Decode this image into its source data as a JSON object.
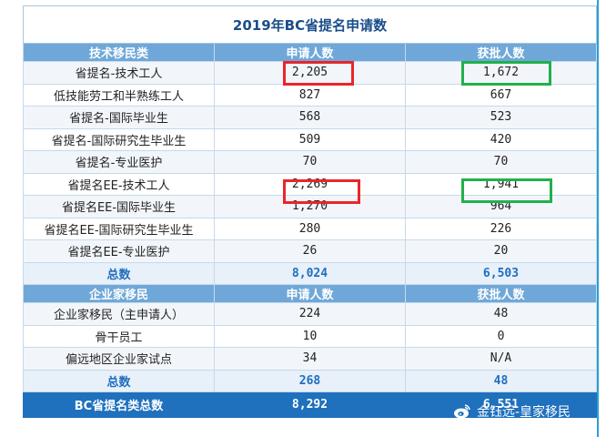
{
  "title": "2019年BC省提名申请数",
  "sections": [
    {
      "header": {
        "category": "技术移民类",
        "col1": "申请人数",
        "col2": "获批人数"
      },
      "rows": [
        {
          "label": "省提名-技术工人",
          "applied": "2,205",
          "approved": "1,672"
        },
        {
          "label": "低技能劳工和半熟练工人",
          "applied": "827",
          "approved": "667"
        },
        {
          "label": "省提名-国际毕业生",
          "applied": "568",
          "approved": "523"
        },
        {
          "label": "省提名-国际研究生毕业生",
          "applied": "509",
          "approved": "420"
        },
        {
          "label": "省提名-专业医护",
          "applied": "70",
          "approved": "70"
        },
        {
          "label": "省提名EE-技术工人",
          "applied": "2,269",
          "approved": "1,941"
        },
        {
          "label": "省提名EE-国际毕业生",
          "applied": "1,270",
          "approved": "964"
        },
        {
          "label": "省提名EE-国际研究生毕业生",
          "applied": "280",
          "approved": "226"
        },
        {
          "label": "省提名EE-专业医护",
          "applied": "26",
          "approved": "20"
        }
      ],
      "total": {
        "label": "总数",
        "applied": "8,024",
        "approved": "6,503"
      }
    },
    {
      "header": {
        "category": "企业家移民",
        "col1": "申请人数",
        "col2": "获批人数"
      },
      "rows": [
        {
          "label": "企业家移民（主申请人）",
          "applied": "224",
          "approved": "48"
        },
        {
          "label": "骨干员工",
          "applied": "10",
          "approved": "0"
        },
        {
          "label": "偏远地区企业家试点",
          "applied": "34",
          "approved": "N/A"
        }
      ],
      "total": {
        "label": "总数",
        "applied": "268",
        "approved": "48"
      }
    }
  ],
  "grand_total": {
    "label": "BC省提名类总数",
    "applied": "8,292",
    "approved": "6,551"
  },
  "watermark": {
    "text": "金钰远-皇家移民",
    "icon": "weibo-icon"
  },
  "colors": {
    "header_bg": "#6fa8d8",
    "grand_bg": "#1f70bd",
    "total_text": "#1e6fbf",
    "highlight_red": "#e8262b",
    "highlight_green": "#21b04b"
  }
}
